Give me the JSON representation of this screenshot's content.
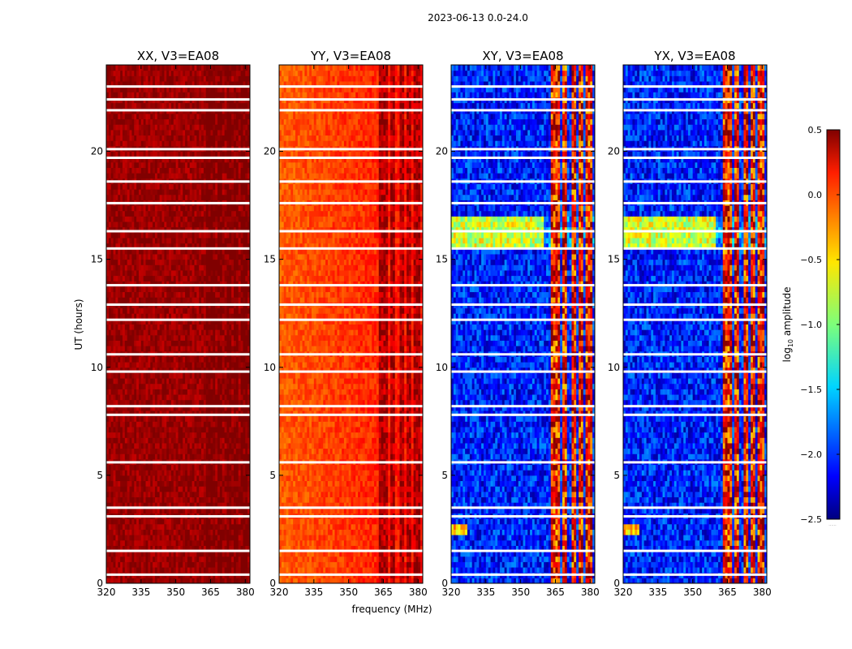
{
  "figure": {
    "suptitle": "2023-06-13 0.0-24.0",
    "xlabel": "frequency (MHz)",
    "ylabel": "UT (hours)",
    "colorbar_label_prefix": "log",
    "colorbar_label_sub": "10",
    "colorbar_label_suffix": " amplitude",
    "colorbar_extra": "......"
  },
  "chart_data": {
    "type": "heatmap",
    "x_range": [
      320,
      382
    ],
    "y_range": [
      0,
      24
    ],
    "x_ticks": [
      320,
      335,
      350,
      365,
      380
    ],
    "x_tick_labels": [
      "320",
      "335",
      "350",
      "365",
      "380"
    ],
    "y_ticks": [
      0,
      5,
      10,
      15,
      20
    ],
    "y_tick_labels": [
      "0",
      "5",
      "10",
      "15",
      "20"
    ],
    "colorbar": {
      "colormap": "jet",
      "range": [
        -2.5,
        0.5
      ],
      "ticks": [
        0.5,
        0.0,
        -0.5,
        -1.0,
        -1.5,
        -2.0,
        -2.5
      ],
      "tick_labels": [
        "0.5",
        "0.0",
        "−0.5",
        "−1.0",
        "−1.5",
        "−2.0",
        "−2.5"
      ]
    },
    "panels": [
      {
        "title": "XX, V3=EA08",
        "pol": "XX",
        "base_level": 0.42,
        "rfi_level": 0.55
      },
      {
        "title": "YY, V3=EA08",
        "pol": "YY",
        "base_level": -0.15,
        "rfi_level": 0.35
      },
      {
        "title": "XY, V3=EA08",
        "pol": "XY",
        "base_level": -2.05,
        "rfi_level": 0.05
      },
      {
        "title": "YX, V3=EA08",
        "pol": "YX",
        "base_level": -2.05,
        "rfi_level": 0.05
      }
    ],
    "flagged_ut_hours": [
      0.4,
      1.5,
      3.1,
      3.5,
      5.6,
      7.8,
      8.2,
      9.8,
      10.6,
      12.2,
      12.9,
      13.8,
      15.5,
      16.3,
      17.6,
      18.6,
      19.7,
      20.1,
      21.9,
      22.4,
      23.0
    ],
    "rfi_bands_mhz": [
      [
        363,
        367
      ],
      [
        368.5,
        370
      ],
      [
        372.5,
        373.5
      ],
      [
        375.5,
        376.5
      ],
      [
        378,
        380.5
      ]
    ],
    "elevated_block_ut": [
      15.5,
      16.8
    ]
  }
}
